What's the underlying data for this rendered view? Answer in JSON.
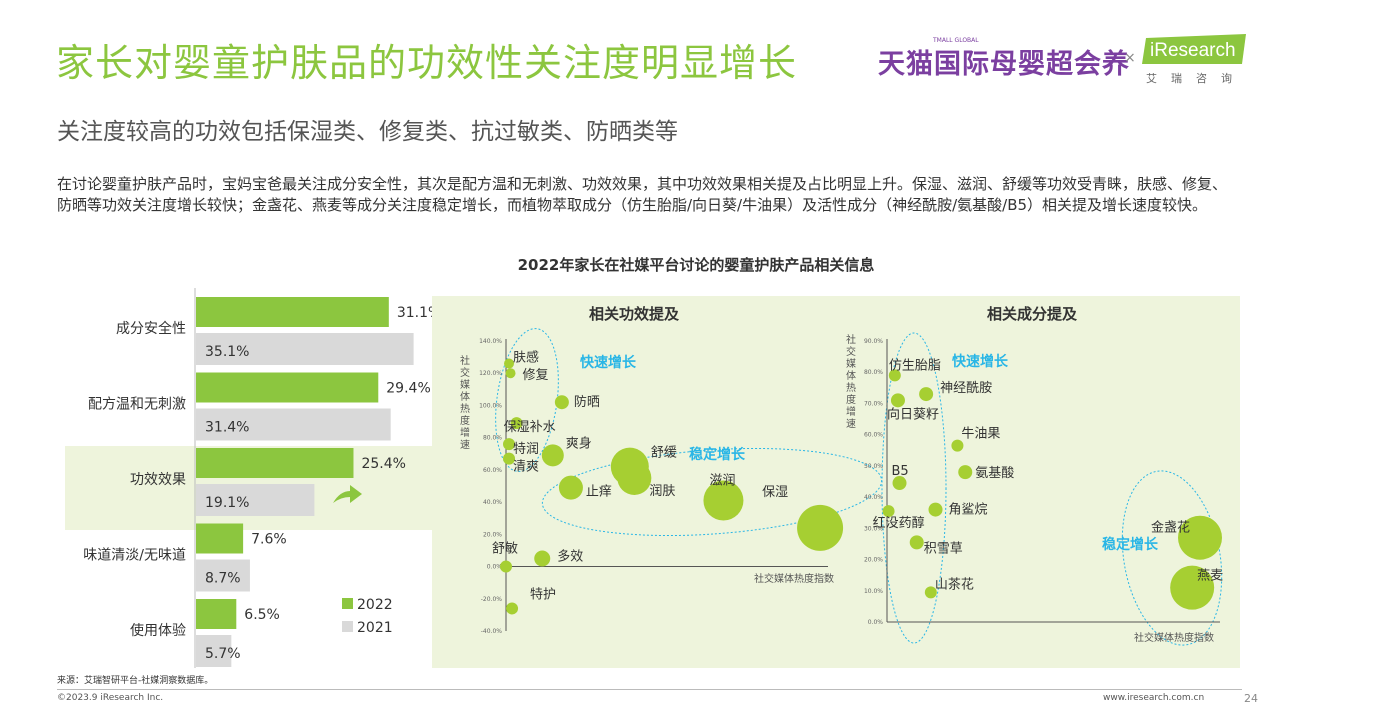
{
  "header": {
    "title": "家长对婴童护肤品的功效性关注度明显增长",
    "subtitle": "关注度较高的功效包括保湿类、修复类、抗过敏类、防晒类等",
    "description": "在讨论婴童护肤产品时，宝妈宝爸最关注成分安全性，其次是配方温和无刺激、功效效果，其中功效效果相关提及占比明显上升。保湿、滋润、舒缓等功效受青睐，肤感、修复、防晒等功效关注度增长较快；金盏花、燕麦等成分关注度稳定增长，而植物萃取成分（仿生胎脂/向日葵/牛油果）及活性成分（神经酰胺/氨基酸/B5）相关提及增长速度较快。"
  },
  "brand": {
    "tmall": "天猫国际母婴超会养",
    "tmall_small": "TMALL GLOBAL",
    "times": "×",
    "iresearch": "iResearch",
    "iresearch_sub": "艾瑞咨询"
  },
  "chart_title": "2022年家长在社媒平台讨论的婴童护肤产品相关信息",
  "colors": {
    "green": "#8cc63f",
    "bubble": "#a6cf32",
    "grey": "#d9d9d9",
    "cyan": "#29b6e6",
    "panel": "#eef4dc",
    "highlight": "#eef4dc"
  },
  "chart_data": [
    {
      "type": "bar",
      "orientation": "horizontal",
      "categories": [
        "成分安全性",
        "配方温和无刺激",
        "功效效果",
        "味道清淡/无味道",
        "使用体验"
      ],
      "series": [
        {
          "name": "2022",
          "values": [
            31.1,
            29.4,
            25.4,
            7.6,
            6.5
          ],
          "labels": [
            "31.1%",
            "29.4%",
            "25.4%",
            "7.6%",
            "6.5%"
          ]
        },
        {
          "name": "2021",
          "values": [
            35.1,
            31.4,
            19.1,
            8.7,
            5.7
          ],
          "labels": [
            "35.1%",
            "31.4%",
            "19.1%",
            "8.7%",
            "5.7%"
          ]
        }
      ],
      "highlight_category": "功效效果",
      "xlim": [
        0,
        40
      ],
      "legend": "bottom-right"
    },
    {
      "type": "scatter",
      "title": "相关功效提及",
      "xlabel": "社交媒体热度指数",
      "ylabel": "社交媒体热度增速",
      "ylim": [
        -40,
        140
      ],
      "yticks": [
        "140.0%",
        "120.0%",
        "100.0%",
        "80.0%",
        "60.0%",
        "40.0%",
        "20.0%",
        "0.0%",
        "-20.0%",
        "-40.0%"
      ],
      "xlim": [
        0,
        100
      ],
      "points": [
        {
          "label": "肤感",
          "x": 1.0,
          "y": 126,
          "size": 5
        },
        {
          "label": "修复",
          "x": 1.5,
          "y": 120,
          "size": 5
        },
        {
          "label": "保湿补水",
          "x": 3.5,
          "y": 89,
          "size": 6
        },
        {
          "label": "防晒",
          "x": 18.5,
          "y": 102,
          "size": 7
        },
        {
          "label": "特润",
          "x": 1.0,
          "y": 76,
          "size": 6
        },
        {
          "label": "清爽",
          "x": 1.0,
          "y": 67,
          "size": 6
        },
        {
          "label": "爽身",
          "x": 15.5,
          "y": 69,
          "size": 11
        },
        {
          "label": "舒缓",
          "x": 41.0,
          "y": 62,
          "size": 19
        },
        {
          "label": "止痒",
          "x": 21.5,
          "y": 49,
          "size": 12
        },
        {
          "label": "润肤",
          "x": 42.5,
          "y": 55,
          "size": 17
        },
        {
          "label": "滋润",
          "x": 72.0,
          "y": 41,
          "size": 20
        },
        {
          "label": "保湿",
          "x": 104.0,
          "y": 24,
          "size": 23
        },
        {
          "label": "舒敏",
          "x": 0.0,
          "y": 0,
          "size": 6
        },
        {
          "label": "多效",
          "x": 12.0,
          "y": 5,
          "size": 8
        },
        {
          "label": "特护",
          "x": 2.0,
          "y": -26,
          "size": 6
        }
      ],
      "annotations": [
        "快速增长",
        "稳定增长"
      ]
    },
    {
      "type": "scatter",
      "title": "相关成分提及",
      "xlabel": "社交媒体热度指数",
      "ylabel": "社交媒体热度增速",
      "ylim": [
        0,
        90
      ],
      "yticks": [
        "90.0%",
        "80.0%",
        "70.0%",
        "60.0%",
        "50.0%",
        "40.0%",
        "30.0%",
        "20.0%",
        "10.0%",
        "0.0%"
      ],
      "xlim": [
        0,
        100
      ],
      "points": [
        {
          "label": "仿生胎脂",
          "x": 2.5,
          "y": 79,
          "size": 6
        },
        {
          "label": "神经酰胺",
          "x": 12.5,
          "y": 73,
          "size": 7
        },
        {
          "label": "向日葵籽",
          "x": 3.5,
          "y": 71,
          "size": 7
        },
        {
          "label": "牛油果",
          "x": 22.5,
          "y": 56.5,
          "size": 6
        },
        {
          "label": "B5",
          "x": 4.0,
          "y": 44.5,
          "size": 7
        },
        {
          "label": "氨基酸",
          "x": 25.0,
          "y": 48,
          "size": 7
        },
        {
          "label": "角鲨烷",
          "x": 15.5,
          "y": 36,
          "size": 7
        },
        {
          "label": "红没药醇",
          "x": 0.5,
          "y": 35.5,
          "size": 6
        },
        {
          "label": "积雪草",
          "x": 9.5,
          "y": 25.5,
          "size": 7
        },
        {
          "label": "山茶花",
          "x": 14.0,
          "y": 9.5,
          "size": 6
        },
        {
          "label": "金盏花",
          "x": 100.0,
          "y": 27,
          "size": 22
        },
        {
          "label": "燕麦",
          "x": 97.5,
          "y": 11,
          "size": 22
        }
      ],
      "annotations": [
        "快速增长",
        "稳定增长"
      ]
    }
  ],
  "footer": {
    "source": "来源：艾瑞智研平台-社媒洞察数据库。",
    "copyright": "©2023.9 iResearch Inc.",
    "url": "www.iresearch.com.cn",
    "page": "24"
  }
}
